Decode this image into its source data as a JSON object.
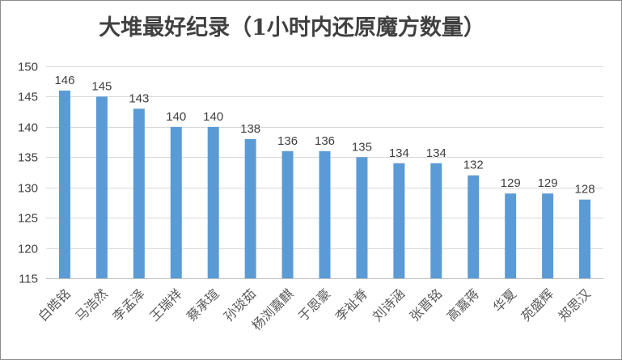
{
  "chart_data": {
    "type": "bar",
    "title": "大堆最好纪录（1小时内还原魔方数量）",
    "categories": [
      "白皓铭",
      "马浩然",
      "李孟泽",
      "王瑞祥",
      "蔡承瑄",
      "孙琰茹",
      "杨浏嘉麒",
      "于恩豪",
      "李祉脊",
      "刘诗涵",
      "张晋铭",
      "高嘉蒋",
      "华夏",
      "苑盛辉",
      "郑思汉"
    ],
    "values": [
      146,
      145,
      143,
      140,
      140,
      138,
      136,
      136,
      135,
      134,
      134,
      132,
      129,
      129,
      128
    ],
    "ylim": [
      115,
      150
    ],
    "yticks": [
      115,
      120,
      125,
      130,
      135,
      140,
      145,
      150
    ],
    "xlabel": "",
    "ylabel": "",
    "bar_color": "#5b9bd5",
    "grid": true,
    "legend": "none",
    "data_labels": true
  }
}
